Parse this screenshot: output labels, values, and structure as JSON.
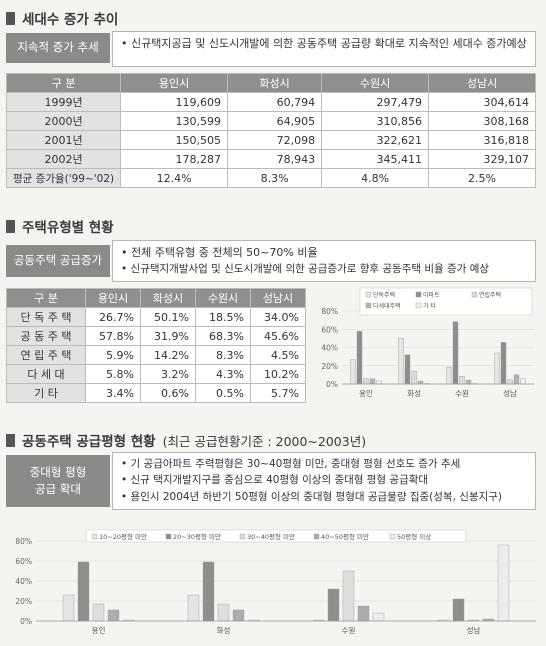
{
  "section1": {
    "title": "세대수 증가 추이",
    "label": "지속적 증가 추세",
    "note": "신규택지공급 및 신도시개발에 의한 공동주택 공급량 확대로 지속적인 세대수 증가예상",
    "columns": [
      "구 분",
      "용인시",
      "화성시",
      "수원시",
      "성남시"
    ],
    "rows": [
      {
        "label": "1999년",
        "values": [
          "119,609",
          "60,794",
          "297,479",
          "304,614"
        ]
      },
      {
        "label": "2000년",
        "values": [
          "130,599",
          "64,905",
          "310,856",
          "308,168"
        ]
      },
      {
        "label": "2001년",
        "values": [
          "150,505",
          "72,098",
          "322,621",
          "316,818"
        ]
      },
      {
        "label": "2002년",
        "values": [
          "178,287",
          "78,943",
          "345,411",
          "329,107"
        ]
      }
    ],
    "avg_row": {
      "label": "평균 증가율('99~'02)",
      "values": [
        "12.4%",
        "8.3%",
        "4.8%",
        "2.5%"
      ]
    }
  },
  "section2": {
    "title": "주택유형별 현황",
    "label": "공동주택 공급증가",
    "notes": [
      "전체 주택유형 중 전체의 50~70% 비율",
      "신규택지개발사업 및 신도시개발에 의한 공급증가로 향후 공동주택 비율 증가 예상"
    ],
    "columns": [
      "구 분",
      "용인시",
      "화성시",
      "수원시",
      "성남시"
    ],
    "rows": [
      {
        "label": "단 독 주 택",
        "values": [
          "26.7%",
          "50.1%",
          "18.5%",
          "34.0%"
        ]
      },
      {
        "label": "공 동 주 택",
        "values": [
          "57.8%",
          "31.9%",
          "68.3%",
          "45.6%"
        ]
      },
      {
        "label": "연 립 주 택",
        "values": [
          "5.9%",
          "14.2%",
          "8.3%",
          "4.5%"
        ]
      },
      {
        "label": "다 세 대",
        "values": [
          "5.8%",
          "3.2%",
          "4.3%",
          "10.2%"
        ]
      },
      {
        "label": "기 타",
        "values": [
          "3.4%",
          "0.6%",
          "0.5%",
          "5.7%"
        ]
      }
    ]
  },
  "section3": {
    "title": "공동주택 공급평형 현황",
    "subtitle": "(최근 공급현황기준 : 2000~2003년)",
    "label_lines": [
      "중대형 평형",
      "공급 확대"
    ],
    "notes": [
      "기 공급아파트 주력평형은 30~40평형 미만, 중대형 평형 선호도 증가 추세",
      "신규 택지개발지구를 중심으로 40평형 이상의 중대형 평형 공급확대",
      "용인시 2004년 하반기 50평형 이상의 중대형 평형대 공급물량 집중(성복, 신봉지구)"
    ]
  },
  "chart_data": [
    {
      "type": "bar",
      "categories": [
        "용인",
        "화성",
        "수원",
        "성남"
      ],
      "series": [
        {
          "name": "단독주택",
          "values": [
            26.7,
            50.1,
            18.5,
            34.0
          ]
        },
        {
          "name": "아파트",
          "values": [
            57.8,
            31.9,
            68.3,
            45.6
          ]
        },
        {
          "name": "연립주택",
          "values": [
            5.9,
            14.2,
            8.3,
            4.5
          ]
        },
        {
          "name": "다세대주택",
          "values": [
            5.8,
            3.2,
            4.3,
            10.2
          ]
        },
        {
          "name": "기 타",
          "values": [
            3.4,
            0.6,
            0.5,
            5.7
          ]
        }
      ],
      "y_ticks": [
        "0%",
        "20%",
        "40%",
        "60%",
        "80%"
      ],
      "ylim": [
        0,
        80
      ],
      "colors": [
        "#e6e6e6",
        "#8e8e8e",
        "#dadada",
        "#b3b3b3",
        "#f0f0f0"
      ],
      "legend": "top"
    },
    {
      "type": "bar",
      "categories": [
        "용인",
        "화성",
        "수원",
        "성남"
      ],
      "series": [
        {
          "name": "10~20평형 미만",
          "values": [
            26,
            26,
            1,
            1
          ]
        },
        {
          "name": "20~30평형 미만",
          "values": [
            59,
            59,
            32,
            22
          ]
        },
        {
          "name": "30~40평형 미만",
          "values": [
            17,
            17,
            50,
            1
          ]
        },
        {
          "name": "40~50평형 미만",
          "values": [
            11,
            11,
            15,
            2
          ]
        },
        {
          "name": "50평형 이상",
          "values": [
            1,
            1,
            8,
            76
          ]
        }
      ],
      "y_ticks": [
        "0%",
        "20%",
        "40%",
        "60%",
        "80%"
      ],
      "ylim": [
        0,
        80
      ],
      "colors": [
        "#e4e4e4",
        "#8e8e8e",
        "#dedede",
        "#acacac",
        "#ececec"
      ],
      "legend": "top"
    }
  ]
}
